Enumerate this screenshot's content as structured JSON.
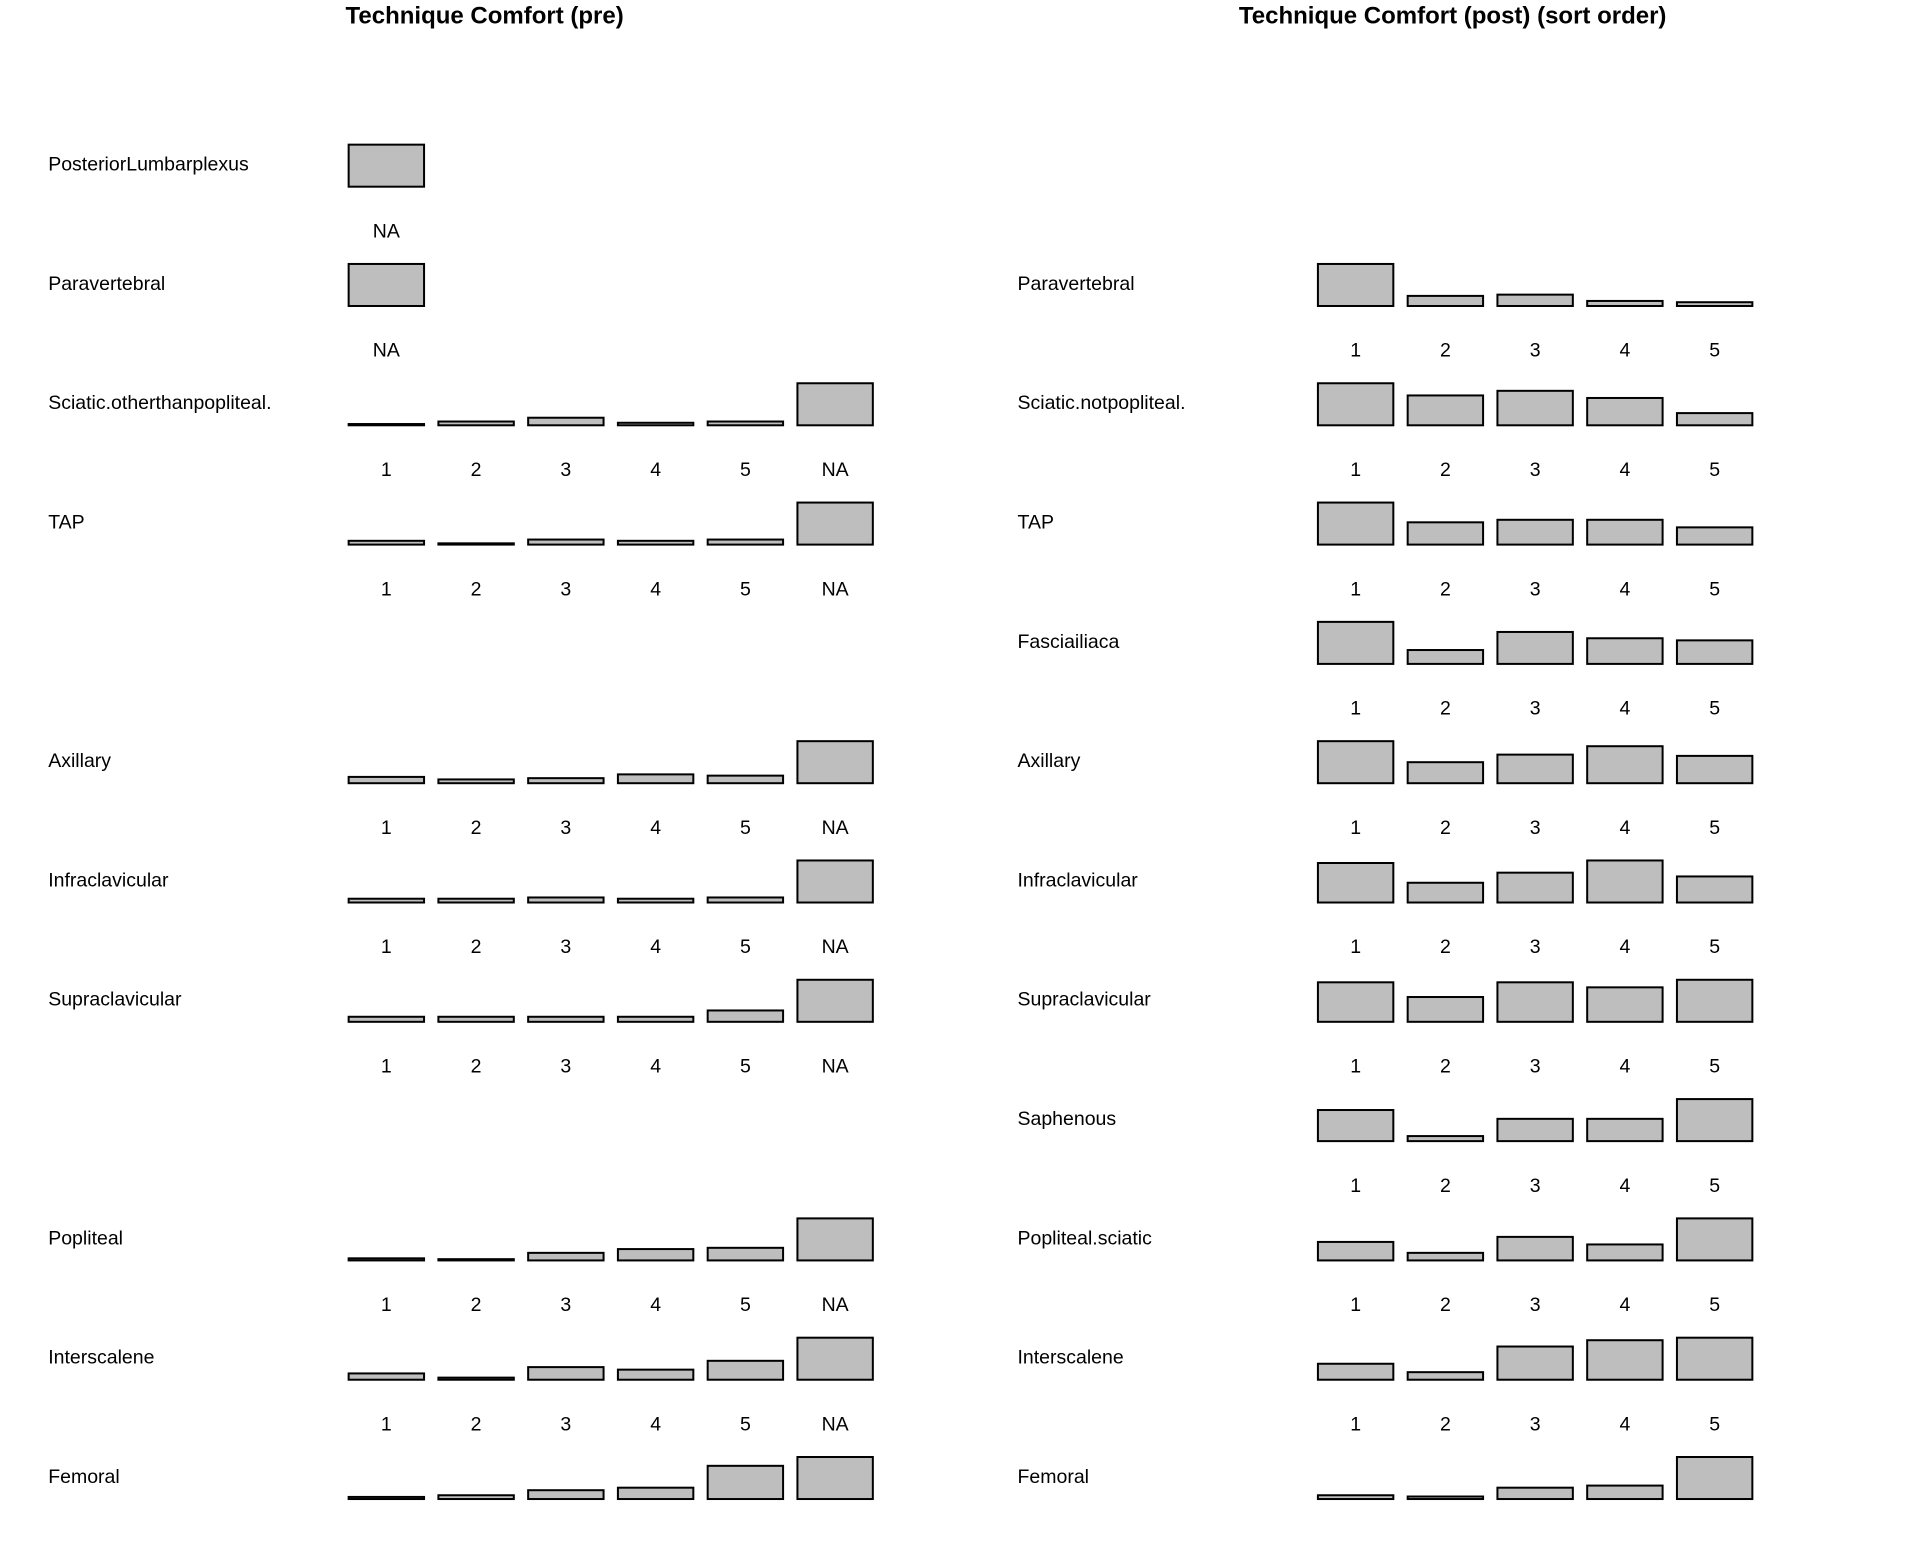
{
  "chart_data": [
    {
      "type": "bar",
      "title": "Technique Comfort (pre)",
      "xlabel": "",
      "ylabel": "",
      "grid": false,
      "rows": [
        {
          "label": "PosteriorLumbarplexus",
          "categories": [
            "NA"
          ],
          "values": [
            1.0
          ]
        },
        {
          "label": "Paravertebral",
          "categories": [
            "NA"
          ],
          "values": [
            1.0
          ]
        },
        {
          "label": "Sciatic.otherthanpopliteal.",
          "categories": [
            "1",
            "2",
            "3",
            "4",
            "5",
            "NA"
          ],
          "values": [
            0.03,
            0.09,
            0.18,
            0.06,
            0.09,
            1.0
          ]
        },
        {
          "label": "TAP",
          "categories": [
            "1",
            "2",
            "3",
            "4",
            "5",
            "NA"
          ],
          "values": [
            0.09,
            0.03,
            0.12,
            0.09,
            0.12,
            1.0
          ]
        },
        {
          "label": "Axillary",
          "categories": [
            "1",
            "2",
            "3",
            "4",
            "5",
            "NA"
          ],
          "values": [
            0.15,
            0.09,
            0.12,
            0.21,
            0.18,
            1.0
          ]
        },
        {
          "label": "Infraclavicular",
          "categories": [
            "1",
            "2",
            "3",
            "4",
            "5",
            "NA"
          ],
          "values": [
            0.09,
            0.09,
            0.12,
            0.09,
            0.12,
            1.0
          ]
        },
        {
          "label": "Supraclavicular",
          "categories": [
            "1",
            "2",
            "3",
            "4",
            "5",
            "NA"
          ],
          "values": [
            0.12,
            0.12,
            0.12,
            0.12,
            0.27,
            1.0
          ]
        },
        {
          "label": "Popliteal",
          "categories": [
            "1",
            "2",
            "3",
            "4",
            "5",
            "NA"
          ],
          "values": [
            0.05,
            0.03,
            0.18,
            0.27,
            0.3,
            1.0
          ]
        },
        {
          "label": "Interscalene",
          "categories": [
            "1",
            "2",
            "3",
            "4",
            "5",
            "NA"
          ],
          "values": [
            0.15,
            0.05,
            0.3,
            0.24,
            0.45,
            1.0
          ]
        },
        {
          "label": "Femoral",
          "categories": [
            "1",
            "2",
            "3",
            "4",
            "5",
            "NA"
          ],
          "values": [
            0.05,
            0.09,
            0.21,
            0.27,
            0.79,
            1.0
          ]
        }
      ]
    },
    {
      "type": "bar",
      "title": "Technique Comfort (post) (sort order)",
      "xlabel": "",
      "ylabel": "",
      "grid": false,
      "rows": [
        {
          "label": "Paravertebral",
          "categories": [
            "1",
            "2",
            "3",
            "4",
            "5"
          ],
          "values": [
            1.0,
            0.24,
            0.27,
            0.12,
            0.09
          ]
        },
        {
          "label": "Sciatic.notpopliteal.",
          "categories": [
            "1",
            "2",
            "3",
            "4",
            "5"
          ],
          "values": [
            1.0,
            0.71,
            0.82,
            0.65,
            0.29
          ]
        },
        {
          "label": "TAP",
          "categories": [
            "1",
            "2",
            "3",
            "4",
            "5"
          ],
          "values": [
            1.0,
            0.53,
            0.59,
            0.59,
            0.41
          ]
        },
        {
          "label": "Fasciailiaca",
          "categories": [
            "1",
            "2",
            "3",
            "4",
            "5"
          ],
          "values": [
            1.0,
            0.33,
            0.76,
            0.61,
            0.56
          ]
        },
        {
          "label": "Axillary",
          "categories": [
            "1",
            "2",
            "3",
            "4",
            "5"
          ],
          "values": [
            1.0,
            0.5,
            0.68,
            0.88,
            0.65
          ]
        },
        {
          "label": "Infraclavicular",
          "categories": [
            "1",
            "2",
            "3",
            "4",
            "5"
          ],
          "values": [
            0.94,
            0.47,
            0.71,
            1.0,
            0.62
          ]
        },
        {
          "label": "Supraclavicular",
          "categories": [
            "1",
            "2",
            "3",
            "4",
            "5"
          ],
          "values": [
            0.94,
            0.59,
            0.94,
            0.82,
            1.0
          ]
        },
        {
          "label": "Saphenous",
          "categories": [
            "1",
            "2",
            "3",
            "4",
            "5"
          ],
          "values": [
            0.74,
            0.12,
            0.53,
            0.53,
            1.0
          ]
        },
        {
          "label": "Popliteal.sciatic",
          "categories": [
            "1",
            "2",
            "3",
            "4",
            "5"
          ],
          "values": [
            0.44,
            0.18,
            0.56,
            0.38,
            1.0
          ]
        },
        {
          "label": "Interscalene",
          "categories": [
            "1",
            "2",
            "3",
            "4",
            "5"
          ],
          "values": [
            0.38,
            0.18,
            0.79,
            0.94,
            1.0
          ]
        },
        {
          "label": "Femoral",
          "categories": [
            "1",
            "2",
            "3",
            "4",
            "5"
          ],
          "values": [
            0.09,
            0.06,
            0.27,
            0.32,
            1.0
          ]
        }
      ]
    }
  ]
}
